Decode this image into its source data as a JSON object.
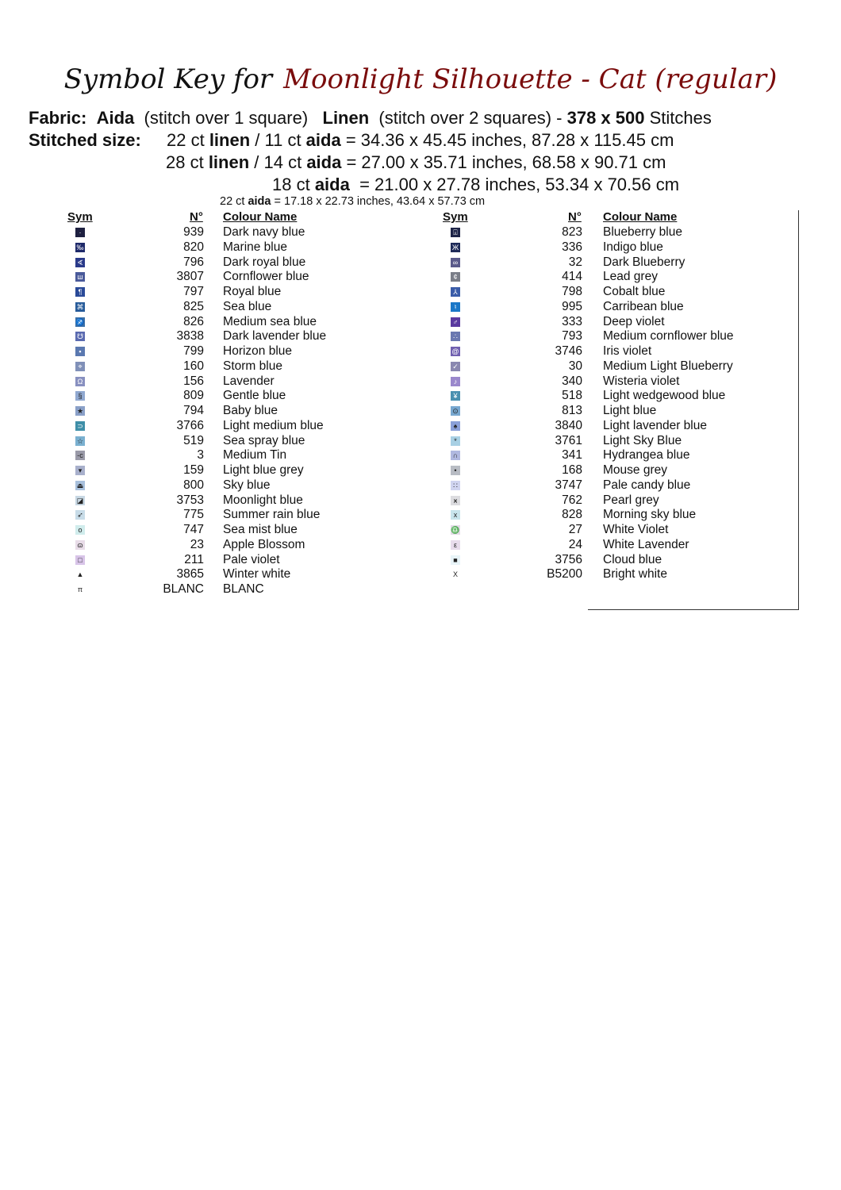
{
  "title": {
    "prefix": "Symbol Key for",
    "pattern": "Moonlight Silhouette - Cat (regular)"
  },
  "fabric": {
    "label": "Fabric:",
    "aida": "Aida",
    "aida_note": "(stitch over 1 square)",
    "linen": "Linen",
    "linen_note": "(stitch over 2 squares) -",
    "stitches": "378 x 500",
    "stitches_label": "Stitches"
  },
  "size": {
    "label": "Stitched size:",
    "l1a": "22 ct ",
    "l1b": "linen",
    "l1c": " / 11 ct ",
    "l1d": "aida",
    "l1e": " = 34.36 x 45.45 inches, 87.28 x 115.45 cm",
    "l2a": "28 ct ",
    "l2b": "linen",
    "l2c": " / 14 ct ",
    "l2d": "aida",
    "l2e": " = 27.00 x 35.71 inches, 68.58 x 90.71 cm",
    "l3a": "18 ct ",
    "l3b": "aida",
    "l3c": "  = 21.00 x 27.78 inches, 53.34 x 70.56 cm",
    "l4a": "22 ct ",
    "l4b": "aida",
    "l4c": " = 17.18 x 22.73 inches, 43.64 x 57.73 cm"
  },
  "headers": {
    "sym": "Sym",
    "num": "N°",
    "name": "Colour Name"
  },
  "left": [
    {
      "sym": "·",
      "num": "939",
      "name": "Dark navy blue",
      "color": "#1e2040"
    },
    {
      "sym": "‰",
      "num": "820",
      "name": "Marine blue",
      "color": "#1f2a6a"
    },
    {
      "sym": "∢",
      "num": "796",
      "name": "Dark royal blue",
      "color": "#2a3a8a"
    },
    {
      "sym": "ш",
      "num": "3807",
      "name": "Cornflower blue",
      "color": "#4a5a9a"
    },
    {
      "sym": "¶",
      "num": "797",
      "name": "Royal blue",
      "color": "#2a4a98"
    },
    {
      "sym": "⌘",
      "num": "825",
      "name": "Sea blue",
      "color": "#285c9a"
    },
    {
      "sym": "♐",
      "num": "826",
      "name": "Medium sea blue",
      "color": "#3a70a8"
    },
    {
      "sym": "☋",
      "num": "3838",
      "name": "Dark lavender blue",
      "color": "#5a6ab0"
    },
    {
      "sym": "▪",
      "num": "799",
      "name": "Horizon blue",
      "color": "#5a78b0"
    },
    {
      "sym": "⌖",
      "num": "160",
      "name": "Storm blue",
      "color": "#8090b8"
    },
    {
      "sym": "Ω",
      "num": "156",
      "name": "Lavender",
      "color": "#8890c0"
    },
    {
      "sym": "§",
      "num": "809",
      "name": "Gentle blue",
      "color": "#90a8d0"
    },
    {
      "sym": "★",
      "num": "794",
      "name": "Baby blue",
      "color": "#8aa0c8"
    },
    {
      "sym": "⊃",
      "num": "3766",
      "name": "Light medium blue",
      "color": "#3f8fa8"
    },
    {
      "sym": "☆",
      "num": "519",
      "name": "Sea spray blue",
      "color": "#7ab0d0"
    },
    {
      "sym": "-c",
      "num": "3",
      "name": "Medium Tin",
      "color": "#9a9aa8"
    },
    {
      "sym": "▾",
      "num": "159",
      "name": "Light blue grey",
      "color": "#a8b0cc"
    },
    {
      "sym": "⏏",
      "num": "800",
      "name": "Sky blue",
      "color": "#a8c0dc"
    },
    {
      "sym": "◪",
      "num": "3753",
      "name": "Moonlight blue",
      "color": "#c8d8e4"
    },
    {
      "sym": "➶",
      "num": "775",
      "name": "Summer rain blue",
      "color": "#c8dce8"
    },
    {
      "sym": "o",
      "num": "747",
      "name": "Sea mist blue",
      "color": "#d0ecec"
    },
    {
      "sym": "ɷ",
      "num": "23",
      "name": "Apple Blossom",
      "color": "#e8dce8"
    },
    {
      "sym": "□",
      "num": "211",
      "name": "Pale violet",
      "color": "#d8c4e8"
    },
    {
      "sym": "▲",
      "num": "3865",
      "name": "Winter white",
      "color": "#ffffff"
    },
    {
      "sym": "π",
      "num": "BLANC",
      "name": "BLANC",
      "color": "#ffffff"
    }
  ],
  "right": [
    {
      "sym": "⌻",
      "num": "823",
      "name": "Blueberry blue",
      "color": "#1e2448"
    },
    {
      "sym": "Ж",
      "num": "336",
      "name": "Indigo blue",
      "color": "#1e2a58"
    },
    {
      "sym": "∞",
      "num": "32",
      "name": "Dark Blueberry",
      "color": "#5a5a8a"
    },
    {
      "sym": "¢",
      "num": "414",
      "name": "Lead grey",
      "color": "#7a7e88"
    },
    {
      "sym": "⅄",
      "num": "798",
      "name": "Cobalt blue",
      "color": "#3a5ca8"
    },
    {
      "sym": "♮",
      "num": "995",
      "name": "Carribean blue",
      "color": "#1a78c8"
    },
    {
      "sym": "♂",
      "num": "333",
      "name": "Deep violet",
      "color": "#5a3aa0"
    },
    {
      "sym": "∴",
      "num": "793",
      "name": "Medium cornflower blue",
      "color": "#6a78b0"
    },
    {
      "sym": "@",
      "num": "3746",
      "name": "Iris violet",
      "color": "#7060b0"
    },
    {
      "sym": "✓",
      "num": "30",
      "name": "Medium Light Blueberry",
      "color": "#8a88b0"
    },
    {
      "sym": "♪",
      "num": "340",
      "name": "Wisteria violet",
      "color": "#9a88cc"
    },
    {
      "sym": "¥",
      "num": "518",
      "name": "Light wedgewood blue",
      "color": "#4a90b0"
    },
    {
      "sym": "⊙",
      "num": "813",
      "name": "Light blue",
      "color": "#78a8d0"
    },
    {
      "sym": "♠",
      "num": "3840",
      "name": "Light lavender blue",
      "color": "#8aa0d8"
    },
    {
      "sym": "*",
      "num": "3761",
      "name": "Light Sky Blue",
      "color": "#a8d0e4"
    },
    {
      "sym": "∩",
      "num": "341",
      "name": "Hydrangea blue",
      "color": "#b0b8e0"
    },
    {
      "sym": "•",
      "num": "168",
      "name": "Mouse grey",
      "color": "#b8bcc4"
    },
    {
      "sym": "∷",
      "num": "3747",
      "name": "Pale candy blue",
      "color": "#d0d4f0"
    },
    {
      "sym": "ӿ",
      "num": "762",
      "name": "Pearl grey",
      "color": "#dcdce0"
    },
    {
      "sym": "x",
      "num": "828",
      "name": "Morning sky blue",
      "color": "#c8e4ec"
    },
    {
      "sym": "♎",
      "num": "27",
      "name": "White Violet",
      "color": "#e4dce8"
    },
    {
      "sym": "ε",
      "num": "24",
      "name": "White Lavender",
      "color": "#e8dcec"
    },
    {
      "sym": "■",
      "num": "3756",
      "name": "Cloud blue",
      "color": "#e8f4f8"
    },
    {
      "sym": "X",
      "num": "B5200",
      "name": "Bright white",
      "color": "#ffffff"
    }
  ]
}
